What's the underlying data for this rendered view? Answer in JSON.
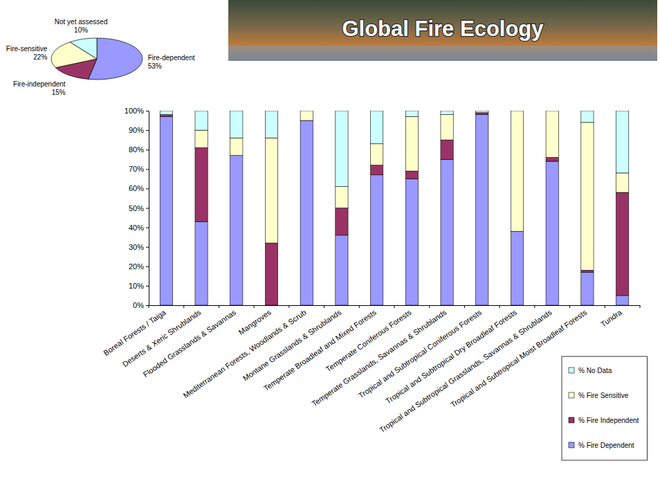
{
  "chart_data": [
    {
      "type": "pie",
      "categories": [
        "Fire-dependent",
        "Fire-independent",
        "Fire-sensitive",
        "Not yet assessed"
      ],
      "values": [
        53,
        15,
        22,
        10
      ],
      "value_labels": [
        "53%",
        "15%",
        "22%",
        "10%"
      ],
      "colors": [
        "#9999ff",
        "#993366",
        "#ffffcc",
        "#ccffff"
      ],
      "data_labels": true
    },
    {
      "type": "bar",
      "title": "Global Fire Ecology",
      "stacked": true,
      "categories": [
        "Boreal Forests / Taiga",
        "Deserts & Xeric Shrublands",
        "Flooded Grasslands & Savannas",
        "Mangroves",
        "Mediterranean Forests, Woodlands & Scrub",
        "Montane Grasslands & Shrublands",
        "Temperate Broadleaf and Mixed Forests",
        "Temperate Coniferous Forests",
        "Temperate Grasslands, Savannas & Shrublands",
        "Tropical and Subtropical Coniferous Forests",
        "Tropical and Subtropical Dry Broadleaf Forests",
        "Tropical and Subtropical Grasslands, Savannas & Shrublands",
        "Tropical and Subtropical Moist Broadleaf Forests",
        "Tundra"
      ],
      "series": [
        {
          "name": "% Fire Dependent",
          "color": "#9999ff",
          "values": [
            97,
            43,
            77,
            0,
            95,
            36,
            67,
            65,
            75,
            98,
            38,
            74,
            17,
            5
          ]
        },
        {
          "name": "% Fire Independent",
          "color": "#993366",
          "values": [
            1,
            38,
            0,
            32,
            0,
            14,
            5,
            4,
            10,
            1,
            0,
            2,
            1,
            53
          ]
        },
        {
          "name": "% Fire Sensitive",
          "color": "#ffffcc",
          "values": [
            0,
            9,
            9,
            54,
            5,
            11,
            11,
            28,
            13,
            0,
            62,
            24,
            76,
            10
          ]
        },
        {
          "name": "% No Data",
          "color": "#ccffff",
          "values": [
            2,
            10,
            14,
            14,
            0,
            39,
            17,
            3,
            2,
            1,
            0,
            0,
            6,
            32
          ]
        }
      ],
      "ylim": [
        0,
        100
      ],
      "yticks": [
        {
          "value": 0,
          "label": "0%"
        },
        {
          "value": 10,
          "label": "10%"
        },
        {
          "value": 20,
          "label": "20%"
        },
        {
          "value": 30,
          "label": "30%"
        },
        {
          "value": 40,
          "label": "40%"
        },
        {
          "value": 50,
          "label": "50%"
        },
        {
          "value": 60,
          "label": "60%"
        },
        {
          "value": 70,
          "label": "70%"
        },
        {
          "value": 80,
          "label": "80%"
        },
        {
          "value": 90,
          "label": "90%"
        },
        {
          "value": 100,
          "label": "100%"
        }
      ],
      "grid": false,
      "legend": "right"
    }
  ]
}
